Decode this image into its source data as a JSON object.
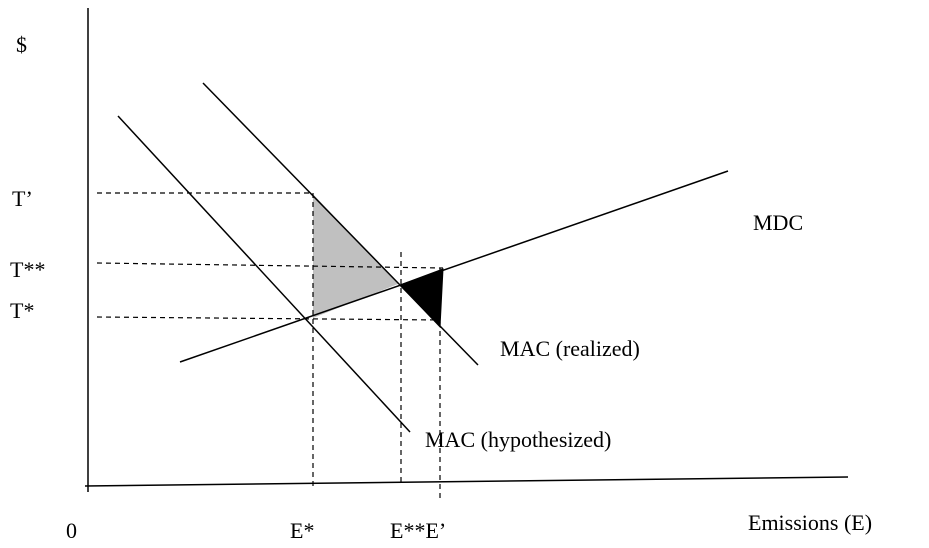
{
  "axes": {
    "y_label": "$",
    "x_label": "Emissions (E)",
    "origin": "0"
  },
  "price_labels": [
    "T’",
    "T**",
    "T*"
  ],
  "emission_labels": [
    "E*",
    "E**E’"
  ],
  "curves": {
    "mdc": "MDC",
    "mac_realized": "MAC (realized)",
    "mac_hypothesized": "MAC (hypothesized)"
  }
}
